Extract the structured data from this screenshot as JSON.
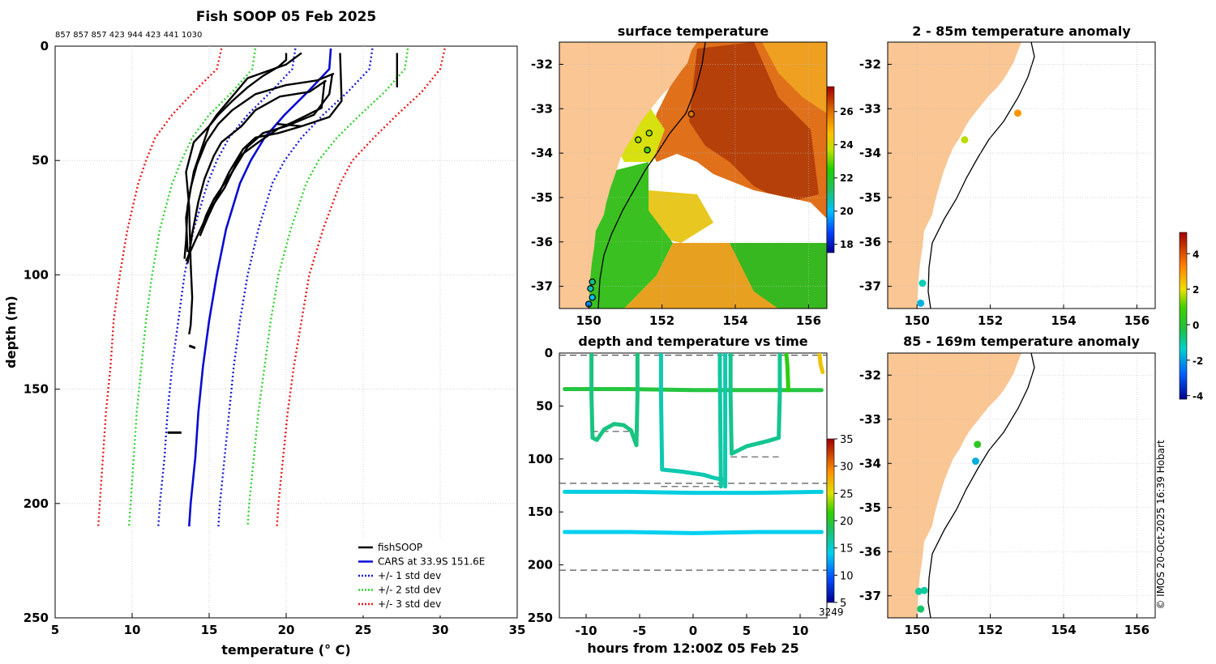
{
  "chart_data": [
    {
      "id": "profile",
      "type": "line",
      "title": "Fish SOOP 05 Feb 2025",
      "subtitle": "857 857 857 423 944 423 441 1030",
      "xlabel": "temperature (° C)",
      "ylabel": "depth (m)",
      "xlim": [
        5,
        35
      ],
      "ylim": [
        250,
        0
      ],
      "xticks": [
        5,
        10,
        15,
        20,
        25,
        30,
        35
      ],
      "yticks": [
        0,
        50,
        100,
        150,
        200,
        250
      ],
      "legend_position": "bottom-right",
      "legend": [
        {
          "label": "fishSOOP",
          "style": "solid",
          "color": "#000000"
        },
        {
          "label": "CARS at 33.9S 151.6E",
          "style": "solid",
          "color": "#0a0ad2"
        },
        {
          "label": "+/- 1 std dev",
          "style": "dotted",
          "color": "#1a1ad8"
        },
        {
          "label": "+/- 2 std dev",
          "style": "dotted",
          "color": "#2ed32e"
        },
        {
          "label": "+/- 3 std dev",
          "style": "dotted",
          "color": "#e81a1a"
        }
      ],
      "depths": [
        1,
        10,
        20,
        30,
        40,
        50,
        60,
        80,
        100,
        120,
        140,
        160,
        180,
        200,
        210
      ],
      "cars_mean": [
        22.9,
        22.8,
        21.4,
        19.9,
        18.6,
        17.7,
        17.0,
        16.1,
        15.5,
        15.0,
        14.6,
        14.3,
        14.1,
        13.8,
        13.7
      ],
      "std_bands": [
        {
          "name": "-1 std",
          "color": "#1a1ad8",
          "values": [
            20.6,
            20.4,
            19.0,
            17.5,
            16.3,
            15.5,
            14.9,
            14.0,
            13.4,
            13.0,
            12.6,
            12.3,
            12.1,
            11.8,
            11.7
          ]
        },
        {
          "name": "+1 std",
          "color": "#1a1ad8",
          "values": [
            25.6,
            25.4,
            24.0,
            22.4,
            21.0,
            19.9,
            19.1,
            18.2,
            17.5,
            17.0,
            16.6,
            16.3,
            16.0,
            15.7,
            15.6
          ]
        },
        {
          "name": "-2 std",
          "color": "#2ed32e",
          "values": [
            18.0,
            17.8,
            16.5,
            15.0,
            13.9,
            13.2,
            12.6,
            11.8,
            11.3,
            10.9,
            10.6,
            10.3,
            10.1,
            9.9,
            9.8
          ]
        },
        {
          "name": "+2 std",
          "color": "#2ed32e",
          "values": [
            27.9,
            27.7,
            26.4,
            24.8,
            23.3,
            22.1,
            21.3,
            20.3,
            19.5,
            19.0,
            18.6,
            18.2,
            17.9,
            17.6,
            17.5
          ]
        },
        {
          "name": "-3 std",
          "color": "#e81a1a",
          "values": [
            15.8,
            15.5,
            14.0,
            12.6,
            11.5,
            10.9,
            10.4,
            9.7,
            9.2,
            8.8,
            8.6,
            8.3,
            8.1,
            7.9,
            7.8
          ]
        },
        {
          "name": "+3 std",
          "color": "#e81a1a",
          "values": [
            30.3,
            30.0,
            28.8,
            27.2,
            25.7,
            24.3,
            23.5,
            22.4,
            21.5,
            21.0,
            20.5,
            20.1,
            19.8,
            19.5,
            19.4
          ]
        }
      ],
      "fish_profiles": [
        {
          "name": "p1",
          "points": [
            [
              21.0,
              3
            ],
            [
              20.0,
              8
            ],
            [
              17.5,
              14
            ],
            [
              16.5,
              22
            ],
            [
              15.5,
              30
            ],
            [
              15.0,
              35
            ],
            [
              14.0,
              42
            ],
            [
              13.5,
              55
            ],
            [
              13.7,
              70
            ],
            [
              13.8,
              95
            ],
            [
              13.9,
              110
            ],
            [
              13.8,
              122
            ],
            [
              13.7,
              126
            ]
          ]
        },
        {
          "name": "p2",
          "points": [
            [
              23.1,
              12
            ],
            [
              22.0,
              15
            ],
            [
              20.0,
              17
            ],
            [
              18.0,
              21
            ],
            [
              16.5,
              28
            ],
            [
              15.6,
              34
            ],
            [
              14.8,
              42
            ],
            [
              14.2,
              52
            ],
            [
              13.8,
              62
            ],
            [
              13.5,
              75
            ],
            [
              13.6,
              90
            ]
          ]
        },
        {
          "name": "p3",
          "points": [
            [
              22.6,
              15
            ],
            [
              21.5,
              20
            ],
            [
              19.6,
              22
            ],
            [
              18.0,
              28
            ],
            [
              17.1,
              35
            ],
            [
              15.8,
              42
            ],
            [
              15.3,
              48
            ],
            [
              14.7,
              58
            ],
            [
              14.3,
              68
            ],
            [
              13.9,
              82
            ],
            [
              13.6,
              95
            ]
          ]
        },
        {
          "name": "p4",
          "points": [
            [
              23.5,
              3
            ],
            [
              23.6,
              24
            ],
            [
              22.8,
              31
            ],
            [
              21.0,
              35
            ],
            [
              19.5,
              38
            ],
            [
              18.0,
              40
            ],
            [
              17.2,
              45
            ],
            [
              16.3,
              55
            ],
            [
              15.8,
              62
            ],
            [
              14.9,
              75
            ],
            [
              14.4,
              83
            ]
          ]
        },
        {
          "name": "p5",
          "points": [
            [
              23.0,
              12
            ],
            [
              22.8,
              21
            ],
            [
              21.8,
              30
            ],
            [
              20.0,
              35
            ],
            [
              18.5,
              38
            ],
            [
              17.5,
              44
            ],
            [
              16.5,
              55
            ],
            [
              15.3,
              67
            ],
            [
              14.8,
              74
            ],
            [
              14.5,
              80
            ]
          ]
        },
        {
          "name": "p6",
          "points": [
            [
              22.5,
              15
            ],
            [
              22.3,
              27
            ],
            [
              20.5,
              33
            ],
            [
              19.5,
              36
            ],
            [
              18.2,
              42
            ],
            [
              17.0,
              48
            ],
            [
              16.0,
              62
            ],
            [
              15.0,
              72
            ],
            [
              14.1,
              85
            ],
            [
              13.5,
              94
            ]
          ]
        },
        {
          "name": "p7",
          "points": [
            [
              20.0,
              3
            ],
            [
              20.0,
              6
            ],
            [
              19.5,
              9
            ],
            [
              18.5,
              13
            ],
            [
              17.5,
              18
            ],
            [
              16.5,
              24
            ],
            [
              15.6,
              30
            ],
            [
              15.0,
              35
            ],
            [
              14.5,
              45
            ],
            [
              14.0,
              55
            ],
            [
              13.6,
              70
            ],
            [
              13.5,
              85
            ],
            [
              13.4,
              93
            ]
          ]
        },
        {
          "name": "p8",
          "points": [
            [
              27.2,
              3
            ],
            [
              27.2,
              18
            ]
          ]
        },
        {
          "name": "p9",
          "points": [
            [
              19.4,
              34
            ],
            [
              21.0,
              35
            ]
          ]
        }
      ],
      "isolated_segments": [
        {
          "points": [
            [
              13.7,
              131
            ],
            [
              14.1,
              132
            ]
          ]
        },
        {
          "points": [
            [
              12.3,
              169
            ],
            [
              13.2,
              169
            ]
          ]
        }
      ]
    },
    {
      "id": "sst_map",
      "type": "heatmap",
      "title": "surface temperature",
      "xlim": [
        149.2,
        156.5
      ],
      "ylim": [
        -37.5,
        -31.5
      ],
      "xticks": [
        150,
        152,
        154,
        156
      ],
      "yticks": [
        -32,
        -33,
        -34,
        -35,
        -36,
        -37
      ],
      "colorbar_ticks": [
        18,
        20,
        22,
        24,
        26
      ],
      "colorbar_range": [
        17.5,
        27.5
      ],
      "stations": [
        {
          "lon": 151.65,
          "lat": -33.55,
          "temp": 23.5
        },
        {
          "lon": 151.35,
          "lat": -33.7,
          "temp": 23.5
        },
        {
          "lon": 151.6,
          "lat": -33.93,
          "temp": 22.8
        },
        {
          "lon": 152.8,
          "lat": -33.12,
          "temp": 26.0
        },
        {
          "lon": 150.1,
          "lat": -36.9,
          "temp": 21.0
        },
        {
          "lon": 150.05,
          "lat": -37.05,
          "temp": 20.5
        },
        {
          "lon": 150.1,
          "lat": -37.25,
          "temp": 20.0
        },
        {
          "lon": 150.0,
          "lat": -37.4,
          "temp": 19.5
        }
      ]
    },
    {
      "id": "depth_time",
      "type": "scatter",
      "title": "depth and temperature vs time",
      "xlabel": "hours from 12:00Z 05 Feb 25",
      "xlim": [
        -12.5,
        12.5
      ],
      "ylim": [
        250,
        0
      ],
      "xticks": [
        -10,
        -5,
        0,
        5,
        10
      ],
      "yticks": [
        0,
        50,
        100,
        150,
        200,
        250
      ],
      "colorbar_ticks": [
        5,
        10,
        15,
        20,
        25,
        30,
        35
      ],
      "colorbar_range": [
        5,
        35
      ],
      "colorbar_label": "3249",
      "dashed_depths": [
        2,
        123,
        205
      ],
      "short_dashed": [
        {
          "x": [
            -9.5,
            -6.0
          ],
          "depth": 74
        },
        {
          "x": [
            -3.0,
            3.0
          ],
          "depth": 126
        },
        {
          "x": [
            3.5,
            8.0
          ],
          "depth": 98
        }
      ],
      "tracks": [
        {
          "name": "track-34m",
          "points": [
            [
              -12.0,
              34
            ],
            [
              -6,
              34
            ],
            [
              0,
              35
            ],
            [
              6,
              35
            ],
            [
              12,
              35
            ]
          ],
          "temp": 19.5
        },
        {
          "name": "track-132m",
          "points": [
            [
              -12.0,
              131
            ],
            [
              -6,
              131
            ],
            [
              0,
              132
            ],
            [
              6,
              132
            ],
            [
              12,
              131
            ]
          ],
          "temp": 14.5
        },
        {
          "name": "track-169m",
          "points": [
            [
              -12.0,
              169
            ],
            [
              -6,
              169
            ],
            [
              0,
              170
            ],
            [
              6,
              169
            ],
            [
              12,
              169
            ]
          ],
          "temp": 14.0
        },
        {
          "name": "track-a",
          "points": [
            [
              -9.5,
              0
            ],
            [
              -9.5,
              40
            ],
            [
              -9.4,
              80
            ],
            [
              -9.0,
              82
            ],
            [
              -8.3,
              72
            ],
            [
              -7.4,
              67
            ],
            [
              -6.5,
              68
            ],
            [
              -5.8,
              73
            ],
            [
              -5.3,
              87
            ],
            [
              -5.2,
              40
            ],
            [
              -5.2,
              0
            ]
          ],
          "temp": 17.5
        },
        {
          "name": "track-b",
          "points": [
            [
              -3.0,
              0
            ],
            [
              -3.0,
              40
            ],
            [
              -2.9,
              110
            ],
            [
              -1,
              112
            ],
            [
              1,
              115
            ],
            [
              2,
              118
            ],
            [
              3,
              120
            ],
            [
              3,
              126
            ],
            [
              3.0,
              60
            ],
            [
              3.0,
              0
            ]
          ],
          "temp": 16.0
        },
        {
          "name": "track-c",
          "points": [
            [
              2.5,
              0
            ],
            [
              2.5,
              20
            ],
            [
              2.6,
              126
            ]
          ],
          "temp": 16.5
        },
        {
          "name": "track-d",
          "points": [
            [
              3.5,
              0
            ],
            [
              3.5,
              40
            ],
            [
              3.6,
              95
            ],
            [
              5,
              88
            ],
            [
              7,
              83
            ],
            [
              8,
              80
            ],
            [
              8.1,
              40
            ],
            [
              8.1,
              0
            ]
          ],
          "temp": 17.0
        },
        {
          "name": "track-e",
          "points": [
            [
              8.7,
              0
            ],
            [
              8.8,
              10
            ],
            [
              8.9,
              35
            ]
          ],
          "temp": 21.0
        },
        {
          "name": "track-f",
          "points": [
            [
              11.8,
              0
            ],
            [
              11.9,
              10
            ],
            [
              12.1,
              18
            ]
          ],
          "temp": 26.5
        }
      ]
    },
    {
      "id": "anom_shallow",
      "type": "scatter",
      "title": "2 - 85m temperature anomaly",
      "xlim": [
        149.2,
        156.5
      ],
      "ylim": [
        -37.5,
        -31.5
      ],
      "xticks": [
        150,
        152,
        154,
        156
      ],
      "yticks": [
        -32,
        -33,
        -34,
        -35,
        -36,
        -37
      ],
      "points": [
        {
          "lon": 152.75,
          "lat": -33.1,
          "anom": 3.0
        },
        {
          "lon": 151.3,
          "lat": -33.7,
          "anom": 1.7
        },
        {
          "lon": 150.15,
          "lat": -36.93,
          "anom": -1.2
        },
        {
          "lon": 150.1,
          "lat": -37.38,
          "anom": -1.8
        }
      ]
    },
    {
      "id": "anom_deep",
      "type": "scatter",
      "title": "85 - 169m temperature anomaly",
      "xlim": [
        149.2,
        156.5
      ],
      "ylim": [
        -37.5,
        -31.5
      ],
      "xticks": [
        150,
        152,
        154,
        156
      ],
      "yticks": [
        -32,
        -33,
        -34,
        -35,
        -36,
        -37
      ],
      "colorbar_ticks": [
        -4,
        -2,
        0,
        2,
        4
      ],
      "colorbar_range": [
        -4.2,
        5.2
      ],
      "points": [
        {
          "lon": 151.65,
          "lat": -33.57,
          "anom": 0.3
        },
        {
          "lon": 151.6,
          "lat": -33.95,
          "anom": -1.8
        },
        {
          "lon": 150.2,
          "lat": -36.88,
          "anom": -1.0
        },
        {
          "lon": 150.05,
          "lat": -36.9,
          "anom": -1.0
        },
        {
          "lon": 150.1,
          "lat": -37.3,
          "anom": -0.6
        }
      ]
    }
  ],
  "credit": "© IMOS 20-Oct-2025 16:39 Hobart",
  "colors": {
    "land": "#f9c694",
    "grid": "#bdbdbd"
  }
}
